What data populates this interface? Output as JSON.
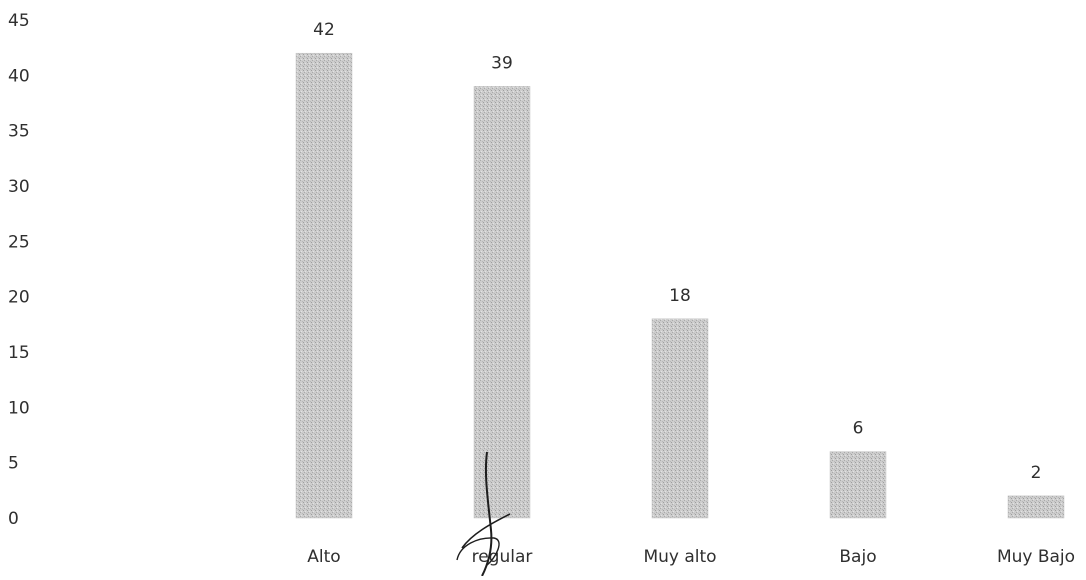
{
  "chart_data": {
    "type": "bar",
    "title": "",
    "xlabel": "",
    "ylabel": "",
    "categories": [
      "Alto",
      "regular",
      "Muy alto",
      "Bajo",
      "Muy Bajo"
    ],
    "values": [
      42,
      39,
      18,
      6,
      2
    ],
    "ylim": [
      0,
      45
    ],
    "yticks": [
      0,
      5,
      10,
      15,
      20,
      25,
      30,
      35,
      40,
      45
    ],
    "data_labels": [
      "42",
      "39",
      "18",
      "6",
      "2"
    ],
    "grid": false,
    "legend": "none",
    "bar_color": "#cfcfcf"
  }
}
